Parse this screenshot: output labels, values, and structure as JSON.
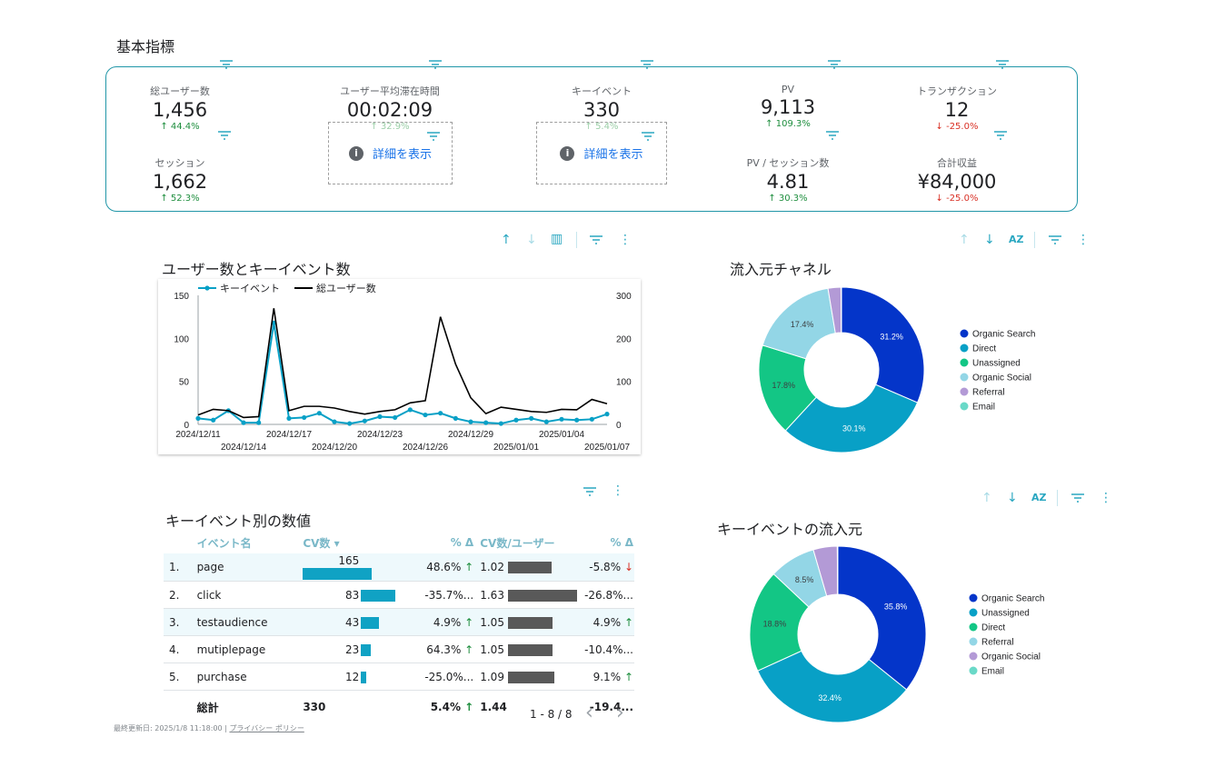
{
  "section_title": "基本指標",
  "kpis": {
    "users": {
      "label": "総ユーザー数",
      "value": "1,456",
      "delta": "↑ 44.4%"
    },
    "avg_time": {
      "label": "ユーザー平均滞在時間",
      "value": "00:02:09",
      "delta": "↑ 32.9%"
    },
    "key_events": {
      "label": "キーイベント",
      "value": "330",
      "delta": "↑ 5.4%"
    },
    "pv": {
      "label": "PV",
      "value": "9,113",
      "delta": "↑ 109.3%"
    },
    "transactions": {
      "label": "トランザクション",
      "value": "12",
      "delta": "↓ -25.0%"
    },
    "sessions": {
      "label": "セッション",
      "value": "1,662",
      "delta": "↑ 52.3%"
    },
    "pv_per_session": {
      "label": "PV / セッション数",
      "value": "4.81",
      "delta": "↑ 30.3%"
    },
    "revenue": {
      "label": "合計収益",
      "value": "¥84,000",
      "delta": "↓ -25.0%"
    }
  },
  "details_label": "詳細を表示",
  "info_glyph": "i",
  "icons": {
    "up": "↑",
    "down": "↓",
    "az": "AZ",
    "insights": "▥",
    "more": "⋮",
    "prev": "‹",
    "next": "›"
  },
  "line_chart_title": "ユーザー数とキーイベント数",
  "channel_chart_title": "流入元チャネル",
  "kev_table_title": "キーイベント別の数値",
  "kev_channel_title": "キーイベントの流入元",
  "colors": {
    "accent": "#2196a8",
    "organic_search": "#0435c9",
    "direct": "#08a0c6",
    "unassigned": "#13c685",
    "organic_social": "#93d6e6",
    "referral": "#b39ad6",
    "email": "#6ad9c8"
  },
  "chart_data": [
    {
      "type": "line",
      "title": "ユーザー数とキーイベント数",
      "x_tick_labels": [
        "2024/12/11",
        "2024/12/14",
        "2024/12/17",
        "2024/12/20",
        "2024/12/23",
        "2024/12/26",
        "2024/12/29",
        "2025/01/01",
        "2025/01/04",
        "2025/01/07"
      ],
      "x": [
        "2024/12/11",
        "2024/12/12",
        "2024/12/13",
        "2024/12/14",
        "2024/12/15",
        "2024/12/16",
        "2024/12/17",
        "2024/12/18",
        "2024/12/19",
        "2024/12/20",
        "2024/12/21",
        "2024/12/22",
        "2024/12/23",
        "2024/12/24",
        "2024/12/25",
        "2024/12/26",
        "2024/12/27",
        "2024/12/28",
        "2024/12/29",
        "2024/12/30",
        "2024/12/31",
        "2025/01/01",
        "2025/01/02",
        "2025/01/03",
        "2025/01/04",
        "2025/01/05",
        "2025/01/06",
        "2025/01/07"
      ],
      "series": [
        {
          "name": "キーイベント",
          "axis": "left",
          "color": "#08a0c6",
          "values": [
            7,
            5,
            16,
            2,
            2,
            118,
            7,
            8,
            13,
            3,
            1,
            4,
            9,
            8,
            17,
            11,
            13,
            7,
            3,
            2,
            1,
            5,
            7,
            3,
            6,
            5,
            6,
            12
          ]
        },
        {
          "name": "総ユーザー数",
          "axis": "right",
          "color": "#000000",
          "values": [
            22,
            35,
            32,
            16,
            18,
            270,
            32,
            42,
            42,
            38,
            30,
            24,
            30,
            34,
            50,
            55,
            250,
            140,
            62,
            25,
            40,
            35,
            30,
            28,
            35,
            34,
            58,
            48
          ]
        }
      ],
      "left_ylim": [
        0,
        150
      ],
      "left_ticks": [
        0,
        50,
        100,
        150
      ],
      "right_ylim": [
        0,
        300
      ],
      "right_ticks": [
        0,
        100,
        200,
        300
      ],
      "legend_position": "top-left"
    },
    {
      "type": "pie",
      "donut": true,
      "title": "流入元チャネル",
      "slices": [
        {
          "label": "Organic Search",
          "value": 31.2,
          "color": "#0435c9",
          "pct": "31.2%"
        },
        {
          "label": "Direct",
          "value": 30.1,
          "color": "#08a0c6",
          "pct": "30.1%"
        },
        {
          "label": "Unassigned",
          "value": 17.8,
          "color": "#13c685",
          "pct": "17.8%"
        },
        {
          "label": "Organic Social",
          "value": 17.4,
          "color": "#93d6e6",
          "pct": "17.4%"
        },
        {
          "label": "Referral",
          "value": 2.5,
          "color": "#b39ad6",
          "pct": ""
        },
        {
          "label": "Email",
          "value": 0.1,
          "color": "#6ad9c8",
          "pct": ""
        }
      ],
      "legend_position": "right"
    },
    {
      "type": "table",
      "title": "キーイベント別の数値",
      "columns": [
        "イベント名",
        "CV数 ▾",
        "% Δ",
        "CV数/ユーザー",
        "% Δ"
      ],
      "rows": [
        {
          "idx": "1.",
          "name": "page",
          "cv": "165",
          "cv_num": 165,
          "pct": "48.6%",
          "pct_dir": "up",
          "cvu": "1.02",
          "cvu_num": 1.02,
          "pct2": "-5.8%",
          "pct2_dir": "down"
        },
        {
          "idx": "2.",
          "name": "click",
          "cv": "83",
          "cv_num": 83,
          "pct": "-35.7%...",
          "pct_dir": "",
          "cvu": "1.63",
          "cvu_num": 1.63,
          "pct2": "-26.8%...",
          "pct2_dir": ""
        },
        {
          "idx": "3.",
          "name": "testaudience",
          "cv": "43",
          "cv_num": 43,
          "pct": "4.9%",
          "pct_dir": "up",
          "cvu": "1.05",
          "cvu_num": 1.05,
          "pct2": "4.9%",
          "pct2_dir": "up"
        },
        {
          "idx": "4.",
          "name": "mutiplepage",
          "cv": "23",
          "cv_num": 23,
          "pct": "64.3%",
          "pct_dir": "up",
          "cvu": "1.05",
          "cvu_num": 1.05,
          "pct2": "-10.4%...",
          "pct2_dir": ""
        },
        {
          "idx": "5.",
          "name": "purchase",
          "cv": "12",
          "cv_num": 12,
          "pct": "-25.0%...",
          "pct_dir": "",
          "cvu": "1.09",
          "cvu_num": 1.09,
          "pct2": "9.1%",
          "pct2_dir": "up"
        }
      ],
      "total": {
        "label": "総計",
        "cv": "330",
        "pct": "5.4%",
        "cvu": "1.44",
        "pct2": "-19.4..."
      },
      "pagination": "1 - 8 / 8"
    },
    {
      "type": "pie",
      "donut": true,
      "title": "キーイベントの流入元",
      "slices": [
        {
          "label": "Organic Search",
          "value": 35.8,
          "color": "#0435c9",
          "pct": "35.8%"
        },
        {
          "label": "Unassigned",
          "value": 32.4,
          "color": "#08a0c6",
          "pct": "32.4%"
        },
        {
          "label": "Direct",
          "value": 18.8,
          "color": "#13c685",
          "pct": "18.8%"
        },
        {
          "label": "Referral",
          "value": 8.5,
          "color": "#93d6e6",
          "pct": "8.5%"
        },
        {
          "label": "Organic Social",
          "value": 4.4,
          "color": "#b39ad6",
          "pct": ""
        },
        {
          "label": "Email",
          "value": 0.1,
          "color": "#6ad9c8",
          "pct": ""
        }
      ],
      "legend_position": "right"
    }
  ],
  "footer": {
    "updated": "最終更新日: 2025/1/8 11:18:00",
    "separator": "|",
    "privacy": "プライバシー ポリシー"
  }
}
